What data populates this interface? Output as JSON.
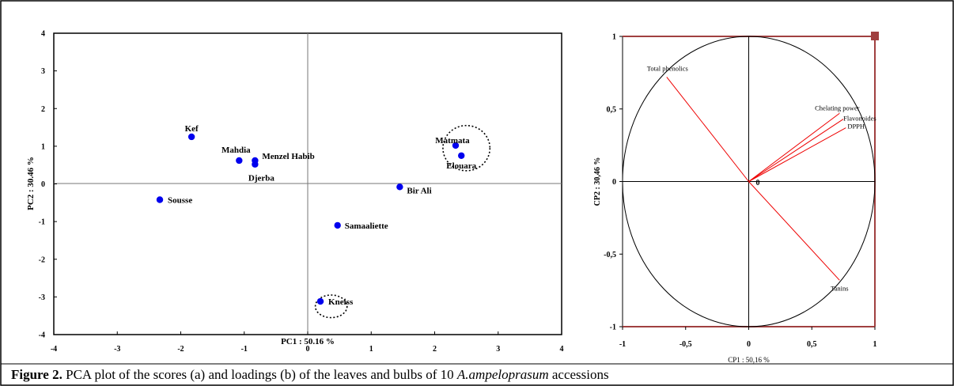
{
  "caption": {
    "label": "Figure 2.",
    "text": " PCA plot of the scores (a) and loadings (b) of the leaves and bulbs of 10 ",
    "species": "A.ampeloprasum",
    "tail": " accessions"
  },
  "chart_data": [
    {
      "type": "scatter",
      "panel": "a",
      "xlabel": "PC1 : 50.16 %",
      "ylabel": "PC2 : 30.46 %",
      "xlim": [
        -4,
        4
      ],
      "ylim": [
        -4,
        4
      ],
      "xticks": [
        "-4",
        "-3",
        "-2",
        "-1",
        "0",
        "1",
        "2",
        "3",
        "4"
      ],
      "yticks": [
        "4",
        "3",
        "2",
        "1",
        "0",
        "-1",
        "-2",
        "-3",
        "-4"
      ],
      "grid": false,
      "marker_color": "#0000ee",
      "points": [
        {
          "label": "Kef",
          "x": -1.83,
          "y": 1.25
        },
        {
          "label": "Mahdia",
          "x": -1.08,
          "y": 0.62
        },
        {
          "label": "Menzel Habib",
          "x": -0.83,
          "y": 0.62
        },
        {
          "label": "Djerba",
          "x": -0.83,
          "y": 0.52
        },
        {
          "label": "Sousse",
          "x": -2.33,
          "y": -0.42
        },
        {
          "label": "Matmata",
          "x": 2.33,
          "y": 1.02
        },
        {
          "label": "Elouara",
          "x": 2.42,
          "y": 0.75
        },
        {
          "label": "Bir Ali",
          "x": 1.45,
          "y": -0.08
        },
        {
          "label": "Samaaliette",
          "x": 0.47,
          "y": -1.1
        },
        {
          "label": "Kneiss",
          "x": 0.2,
          "y": -3.12
        }
      ],
      "clusters": [
        {
          "cx": 2.5,
          "cy": 0.95,
          "rx": 0.37,
          "ry": 0.6
        },
        {
          "cx": 0.37,
          "cy": -3.25,
          "rx": 0.25,
          "ry": 0.3
        }
      ]
    },
    {
      "type": "loadings",
      "panel": "b",
      "xlabel": "CP1 : 50,16 %",
      "ylabel": "CP2 : 30,46 %",
      "xlim": [
        -1,
        1
      ],
      "ylim": [
        -1,
        1
      ],
      "xticks": [
        "-1",
        "-0,5",
        "0",
        "0,5",
        "1"
      ],
      "yticks": [
        "1",
        "0,5",
        "0",
        "-0,5",
        "-1"
      ],
      "origin_label": "0",
      "line_color": "#ee0000",
      "circle_color": "#000000",
      "vectors": [
        {
          "label": "Total phenolics",
          "x": -0.65,
          "y": 0.72
        },
        {
          "label": "Chelating power",
          "x": 0.72,
          "y": 0.47
        },
        {
          "label": "Flavonoides",
          "x": 0.75,
          "y": 0.43
        },
        {
          "label": "DPPH",
          "x": 0.77,
          "y": 0.37
        },
        {
          "label": "Tanins",
          "x": 0.72,
          "y": -0.68
        }
      ]
    }
  ]
}
